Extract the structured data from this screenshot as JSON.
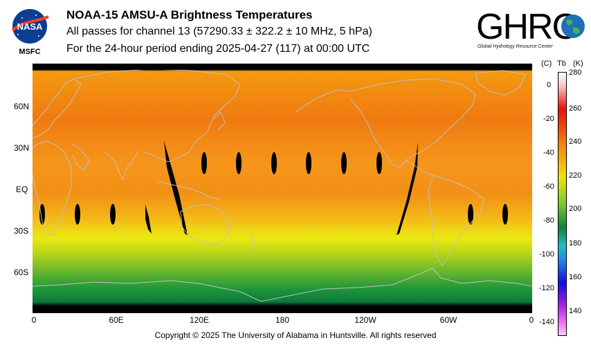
{
  "header": {
    "title": "NOAA-15 AMSU-A Brightness Temperatures",
    "subtitle": "All passes for channel 13 (57290.33 ± 322.2 ± 10 MHz, 5 hPa)",
    "period": "For the 24-hour period ending 2025-04-27 (117) at 00:00 UTC"
  },
  "logos": {
    "nasa_text": "NASA",
    "nasa_caption": "MSFC",
    "ghrc_text": "GHRC",
    "ghrc_subtitle": "Global Hydrology Resource Center"
  },
  "map": {
    "lat_labels": [
      "60N",
      "30N",
      "EQ",
      "30S",
      "60S"
    ],
    "lon_labels": [
      "0",
      "60E",
      "120E",
      "180",
      "120W",
      "60W",
      "0"
    ],
    "land_outline_color": "#c0c0c0",
    "missing_data_color": "#000000"
  },
  "colorbar": {
    "header_c": "(C)",
    "header_tb": "Tb",
    "header_k": "(K)",
    "celsius_ticks": [
      "0",
      "-20",
      "-40",
      "-60",
      "-80",
      "-100",
      "-120",
      "-140"
    ],
    "kelvin_ticks": [
      "280",
      "260",
      "240",
      "220",
      "200",
      "180",
      "160",
      "140"
    ],
    "range_k": [
      133,
      281
    ]
  },
  "footer": {
    "copyright": "Copyright © 2025 The University of Alabama in Huntsville.  All rights reserved"
  }
}
